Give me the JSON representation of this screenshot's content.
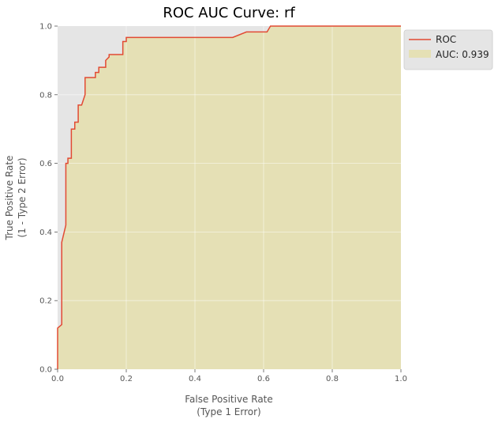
{
  "chart_data": {
    "type": "area",
    "title": "ROC AUC Curve: rf",
    "xlabel_line1": "False Positive Rate",
    "xlabel_line2": "(Type 1 Error)",
    "ylabel_line1": "True Positive Rate",
    "ylabel_line2": "(1 - Type 2 Error)",
    "xlim": [
      0,
      1
    ],
    "ylim": [
      0,
      1
    ],
    "xticks": [
      "0.0",
      "0.2",
      "0.4",
      "0.6",
      "0.8",
      "1.0"
    ],
    "yticks": [
      "0.0",
      "0.2",
      "0.4",
      "0.6",
      "0.8",
      "1.0"
    ],
    "grid": true,
    "legend_position": "upper-right-outside",
    "series": [
      {
        "name": "ROC",
        "color": "#e24a33",
        "x": [
          0.0,
          0.0,
          0.012,
          0.012,
          0.024,
          0.024,
          0.03,
          0.03,
          0.04,
          0.04,
          0.05,
          0.05,
          0.06,
          0.06,
          0.065,
          0.07,
          0.08,
          0.08,
          0.11,
          0.11,
          0.12,
          0.12,
          0.14,
          0.14,
          0.15,
          0.15,
          0.16,
          0.19,
          0.19,
          0.2,
          0.2,
          0.51,
          0.55,
          0.61,
          0.62,
          1.0
        ],
        "y": [
          0.0,
          0.12,
          0.13,
          0.37,
          0.42,
          0.6,
          0.6,
          0.615,
          0.615,
          0.7,
          0.7,
          0.72,
          0.72,
          0.77,
          0.77,
          0.77,
          0.8,
          0.85,
          0.85,
          0.865,
          0.865,
          0.88,
          0.88,
          0.9,
          0.91,
          0.917,
          0.917,
          0.917,
          0.955,
          0.955,
          0.967,
          0.967,
          0.983,
          0.983,
          1.0,
          1.0
        ]
      }
    ],
    "fill_legend": "AUC: 0.939",
    "fill_color": "#e5e0b5"
  }
}
